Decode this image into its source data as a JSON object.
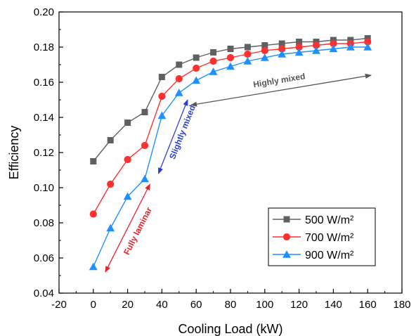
{
  "chart_data": {
    "type": "line",
    "xlabel": "Cooling Load (kW)",
    "ylabel": "Efficiency",
    "xlim": [
      -20,
      180
    ],
    "ylim": [
      0.04,
      0.2
    ],
    "xticks": [
      -20,
      0,
      20,
      40,
      60,
      80,
      100,
      120,
      140,
      160,
      180
    ],
    "yticks": [
      0.04,
      0.06,
      0.08,
      0.1,
      0.12,
      0.14,
      0.16,
      0.18,
      0.2
    ],
    "x": [
      0,
      10,
      20,
      30,
      40,
      50,
      60,
      70,
      80,
      90,
      100,
      110,
      120,
      130,
      140,
      150,
      160
    ],
    "series": [
      {
        "name": "500 W/m²",
        "color": "#606060",
        "marker": "square",
        "values": [
          0.115,
          0.127,
          0.137,
          0.143,
          0.163,
          0.17,
          0.174,
          0.177,
          0.179,
          0.18,
          0.181,
          0.182,
          0.183,
          0.183,
          0.184,
          0.184,
          0.185
        ]
      },
      {
        "name": "700 W/m²",
        "color": "#ff3030",
        "marker": "circle",
        "values": [
          0.085,
          0.102,
          0.116,
          0.124,
          0.152,
          0.162,
          0.168,
          0.172,
          0.174,
          0.176,
          0.178,
          0.179,
          0.18,
          0.181,
          0.182,
          0.182,
          0.183
        ]
      },
      {
        "name": "900 W/m²",
        "color": "#1e90ff",
        "marker": "triangle",
        "values": [
          0.055,
          0.077,
          0.095,
          0.105,
          0.141,
          0.154,
          0.161,
          0.166,
          0.169,
          0.172,
          0.174,
          0.176,
          0.177,
          0.178,
          0.179,
          0.18,
          0.18
        ]
      }
    ],
    "annotations": [
      {
        "text": "Highly mixed",
        "color": "#555555",
        "arrow_from": [
          57,
          0.147
        ],
        "arrow_to": [
          162,
          0.164
        ]
      },
      {
        "text": "Slightly mixed",
        "color": "#2a3fcf",
        "arrow_from": [
          38,
          0.108
        ],
        "arrow_to": [
          55,
          0.15
        ]
      },
      {
        "text": "Fully laminar",
        "color": "#e8202a",
        "arrow_from": [
          7,
          0.052
        ],
        "arrow_to": [
          33,
          0.102
        ]
      }
    ],
    "grid": false,
    "legend_position": "bottom-right"
  }
}
